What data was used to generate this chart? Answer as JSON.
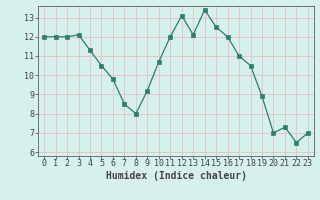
{
  "x": [
    0,
    1,
    2,
    3,
    4,
    5,
    6,
    7,
    8,
    9,
    10,
    11,
    12,
    13,
    14,
    15,
    16,
    17,
    18,
    19,
    20,
    21,
    22,
    23
  ],
  "y": [
    12,
    12,
    12,
    12.1,
    11.3,
    10.5,
    9.8,
    8.5,
    8.0,
    9.2,
    10.7,
    12.0,
    13.1,
    12.1,
    13.4,
    12.5,
    12.0,
    11.0,
    10.5,
    8.9,
    7.0,
    7.3,
    6.5,
    7.0
  ],
  "line_color": "#2e7d6e",
  "marker": "s",
  "marker_size": 2.5,
  "bg_color": "#d6f0ee",
  "xlabel": "Humidex (Indice chaleur)",
  "xlim": [
    -0.5,
    23.5
  ],
  "ylim": [
    5.8,
    13.6
  ],
  "yticks": [
    6,
    7,
    8,
    9,
    10,
    11,
    12,
    13
  ],
  "xticks": [
    0,
    1,
    2,
    3,
    4,
    5,
    6,
    7,
    8,
    9,
    10,
    11,
    12,
    13,
    14,
    15,
    16,
    17,
    18,
    19,
    20,
    21,
    22,
    23
  ],
  "axis_color": "#444444",
  "font_size_label": 7,
  "font_size_tick": 6,
  "grid_major_color": "#e8b8b8",
  "grid_minor_color": "#f0d0d0"
}
